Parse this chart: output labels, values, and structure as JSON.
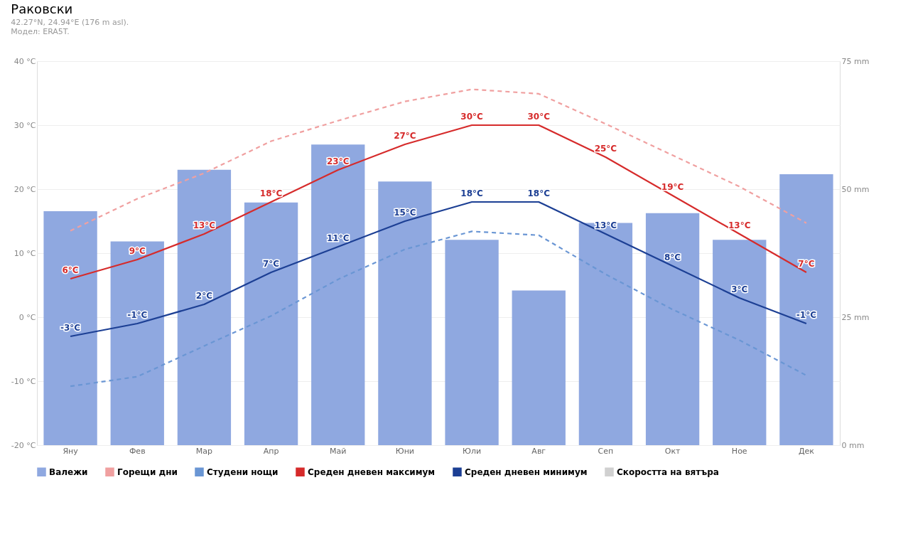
{
  "chart_data": {
    "type": "line",
    "title": "Раковски",
    "subtitle": "42.27°N, 24.94°E (176 m asl).\nМодел: ERA5T.",
    "categories": [
      "Яну",
      "Фев",
      "Мар",
      "Апр",
      "Май",
      "Юни",
      "Юли",
      "Авг",
      "Сеп",
      "Окт",
      "Ное",
      "Дек"
    ],
    "series": [
      {
        "name": "Валежи",
        "type": "bar",
        "axis": "y2",
        "color": "#8fa8e0",
        "values": [
          45.7,
          39.8,
          53.8,
          47.4,
          58.7,
          51.5,
          40.1,
          30.2,
          43.4,
          45.3,
          40.1,
          52.9
        ]
      },
      {
        "name": "Горещи дни",
        "line_style": "dashed",
        "color": "#f0a0a0",
        "values": [
          13.5,
          18.5,
          22.5,
          27.5,
          30.7,
          33.7,
          35.6,
          34.9,
          30.2,
          25.3,
          20.4,
          14.7
        ]
      },
      {
        "name": "Студени нощи",
        "line_style": "dashed",
        "color": "#6a96d4",
        "values": [
          -10.8,
          -9.3,
          -4.5,
          0.2,
          5.9,
          10.6,
          13.4,
          12.8,
          6.7,
          1.2,
          -3.6,
          -9.1
        ]
      },
      {
        "name": "Среден дневен максимум",
        "line_style": "solid",
        "color": "#d62b2b",
        "values": [
          6,
          9,
          13,
          18,
          23,
          27,
          30,
          30,
          25,
          19,
          13,
          7
        ],
        "value_labels": [
          "6°C",
          "9°C",
          "13°C",
          "18°C",
          "23°C",
          "27°C",
          "30°C",
          "30°C",
          "25°C",
          "19°C",
          "13°C",
          "7°C"
        ]
      },
      {
        "name": "Среден дневен минимум",
        "line_style": "solid",
        "color": "#1c3f94",
        "values": [
          -3,
          -1,
          2,
          7,
          11,
          15,
          18,
          18,
          13,
          8,
          3,
          -1
        ],
        "value_labels": [
          "-3°C",
          "-1°C",
          "2°C",
          "7°C",
          "11°C",
          "15°C",
          "18°C",
          "18°C",
          "13°C",
          "8°C",
          "3°C",
          "-1°C"
        ]
      },
      {
        "name": "Скоростта на вятъра",
        "line_style": "solid",
        "color": "#d0d0d0",
        "values": [
          null,
          null,
          null,
          null,
          null,
          null,
          null,
          null,
          null,
          null,
          null,
          null
        ]
      }
    ],
    "ylim": [
      -20,
      40
    ],
    "yticks": [
      {
        "value": -20,
        "label": "-20 °C"
      },
      {
        "value": -10,
        "label": "-10 °C"
      },
      {
        "value": 0,
        "label": "0 °C"
      },
      {
        "value": 10,
        "label": "10 °C"
      },
      {
        "value": 20,
        "label": "20 °C"
      },
      {
        "value": 30,
        "label": "30 °C"
      },
      {
        "value": 40,
        "label": "40 °C"
      }
    ],
    "y2lim": [
      0,
      75
    ],
    "y2ticks": [
      {
        "value": 0,
        "label": "0 mm"
      },
      {
        "value": 25,
        "label": "25 mm"
      },
      {
        "value": 50,
        "label": "50 mm"
      },
      {
        "value": 75,
        "label": "75 mm"
      }
    ],
    "grid": "y",
    "legend": "bottom"
  }
}
